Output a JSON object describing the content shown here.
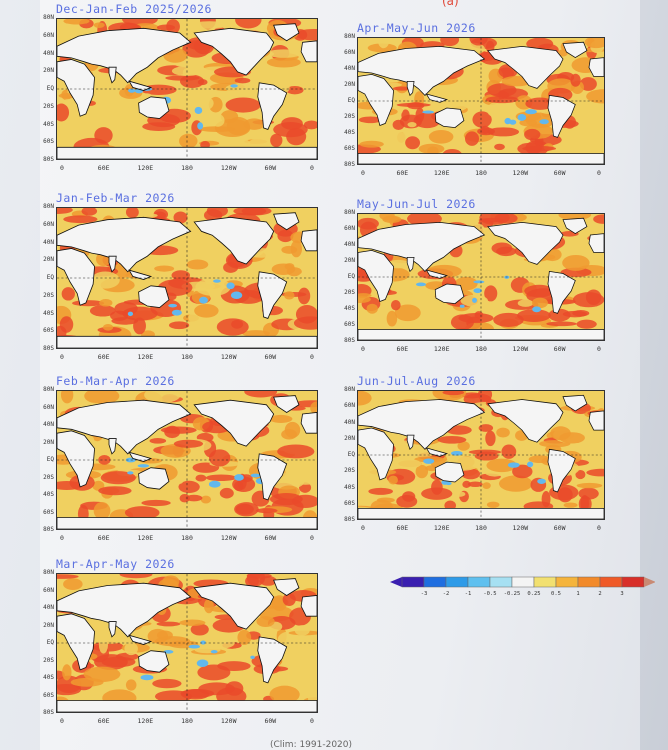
{
  "header": {
    "mark": "(a)"
  },
  "panels": [
    {
      "id": "djf",
      "title": "Dec-Jan-Feb 2025/2026"
    },
    {
      "id": "amj",
      "title": "Apr-May-Jun 2026"
    },
    {
      "id": "jfm",
      "title": "Jan-Feb-Mar 2026"
    },
    {
      "id": "mjj",
      "title": "May-Jun-Jul 2026"
    },
    {
      "id": "fma",
      "title": "Feb-Mar-Apr 2026"
    },
    {
      "id": "jja",
      "title": "Jun-Jul-Aug 2026"
    },
    {
      "id": "mam",
      "title": "Mar-Apr-May 2026"
    }
  ],
  "lat_labels": [
    "80N",
    "60N",
    "40N",
    "20N",
    "EQ",
    "20S",
    "40S",
    "60S",
    "80S"
  ],
  "lon_labels": [
    "0",
    "60E",
    "120E",
    "180",
    "120W",
    "60W",
    "0"
  ],
  "legend": {
    "labels": [
      "-3",
      "-2",
      "-1",
      "-0.5",
      "-0.25",
      "0.25",
      "0.5",
      "1",
      "2",
      "3"
    ],
    "colors": [
      "#3a1fb0",
      "#1f6ee0",
      "#2e9be8",
      "#5fc0ef",
      "#a6e0f2",
      "#f4f4f4",
      "#f2e070",
      "#f5b43c",
      "#f28a2a",
      "#ef5a28",
      "#d8302a"
    ]
  },
  "footer": {
    "text": "(Clim: 1991-2020)"
  },
  "palette": {
    "land": "#f5f5f5",
    "coast": "#111111",
    "warm1": "#f0d060",
    "warm2": "#f09a30",
    "warm3": "#ea4a2a",
    "cool": "#62b8ee"
  }
}
